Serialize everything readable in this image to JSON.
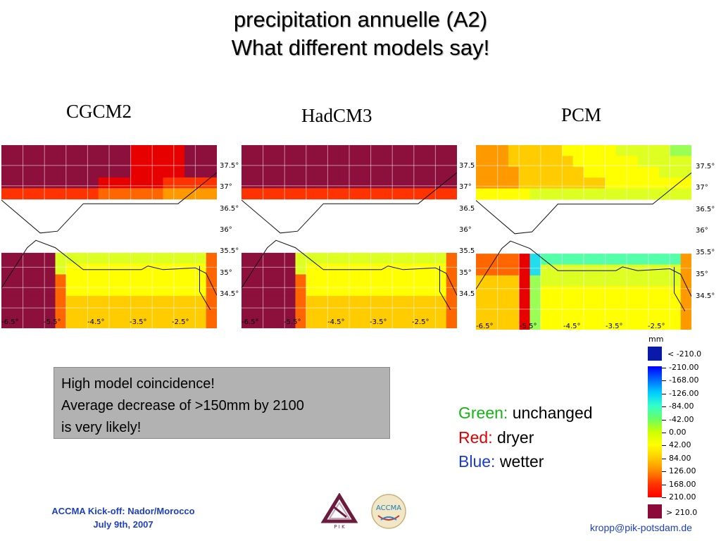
{
  "title": {
    "line1": "precipitation annuelle (A2)",
    "line2": "What different models say!"
  },
  "models": [
    {
      "label": "CGCM2",
      "y_ticks": [
        "37.5°",
        "37°",
        "36.5°",
        "36°",
        "35.5°",
        "35°",
        "34.5°"
      ],
      "x_ticks": [
        "-6.5°",
        "-5.5°",
        "-4.5°",
        "-3.5°",
        "-2.5°"
      ]
    },
    {
      "label": "HadCM3",
      "y_ticks": [
        "37.5",
        "37°",
        "36.5",
        "36°",
        "35.5",
        "35°",
        "34.5"
      ],
      "x_ticks": [
        "-6.5°",
        "-5.5°",
        "-4.5°",
        "-3.5°",
        "-2.5°"
      ]
    },
    {
      "label": "PCM",
      "y_ticks": [
        "37.5°",
        "37°",
        "36.5°",
        "36°",
        "35.5°",
        "35°",
        "34.5°"
      ],
      "x_ticks": [
        "-6.5°",
        "-5.5°",
        "-4.5°",
        "-3.5°",
        "-2.5°"
      ]
    }
  ],
  "info_box": {
    "line1": "High model coincidence!",
    "line2": "Average decrease of >150mm by 2100",
    "line3": "is very likely!"
  },
  "legend": {
    "green_label": "Green:",
    "green_text": " unchanged",
    "green_color": "#14b414",
    "red_label": "Red:",
    "red_text": " dryer",
    "red_color": "#e00000",
    "blue_label": "Blue:",
    "blue_text": " wetter",
    "blue_color": "#1a3bd6"
  },
  "colorbar": {
    "unit": "mm",
    "low_label": "< -210.0",
    "high_label": "> 210.0",
    "ticks": [
      "-210.00",
      "-168.00",
      "-126.00",
      "-84.00",
      "-42.00",
      "0.00",
      "42.00",
      "84.00",
      "126.00",
      "168.00",
      "210.00"
    ],
    "colors": [
      "#0a1aa8",
      "#0000ff",
      "#0066ff",
      "#00ccff",
      "#33ffcc",
      "#66ff66",
      "#ccff00",
      "#ffff00",
      "#ffcc00",
      "#ff8800",
      "#ff3300",
      "#ff0000",
      "#8b0a3a"
    ]
  },
  "footer": {
    "event": "ACCMA Kick-off: Nador/Morocco",
    "date": "July 9th, 2007",
    "pik_logo_text": "P I K",
    "accma_logo_text": "ACCMA",
    "email": "kropp@pik-potsdam.de"
  }
}
